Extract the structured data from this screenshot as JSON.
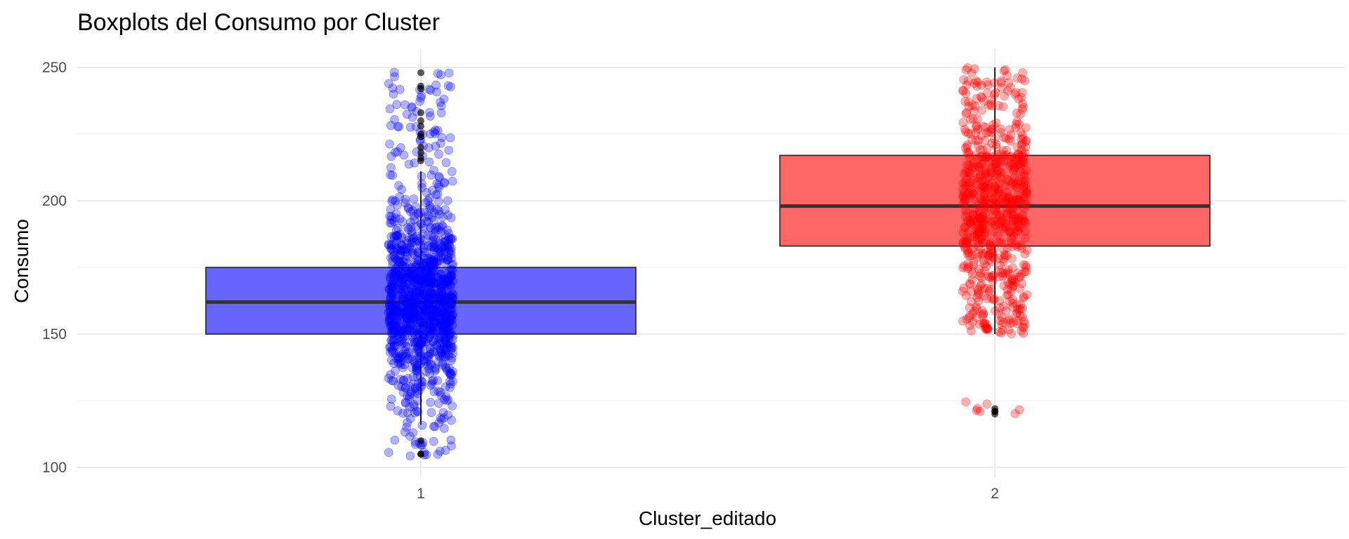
{
  "chart_data": {
    "type": "boxplot",
    "title": "Boxplots del Consumo por Cluster",
    "xlabel": "Cluster_editado",
    "ylabel": "Consumo",
    "ylim": [
      96,
      254
    ],
    "y_ticks": [
      100,
      150,
      200,
      250
    ],
    "grid": true,
    "categories": [
      "1",
      "2"
    ],
    "series": [
      {
        "category": "1",
        "fill": "#6666ff",
        "point_color": "#0000ff",
        "stats": {
          "lower_whisker": 116,
          "q1": 150,
          "median": 162,
          "q3": 175,
          "upper_whisker": 211
        },
        "outliers": [
          248,
          243,
          242,
          233,
          230,
          228,
          225,
          224,
          220,
          218,
          216,
          215,
          110,
          105,
          105
        ],
        "jitter_range": [
          104,
          248
        ],
        "jitter_count": 1100
      },
      {
        "category": "2",
        "fill": "#ff6666",
        "point_color": "#ff0000",
        "stats": {
          "lower_whisker": 150,
          "q1": 183,
          "median": 198,
          "q3": 217,
          "upper_whisker": 250
        },
        "outliers": [
          122,
          121,
          121,
          120
        ],
        "jitter_range": [
          120,
          250
        ],
        "jitter_count": 650
      }
    ]
  }
}
